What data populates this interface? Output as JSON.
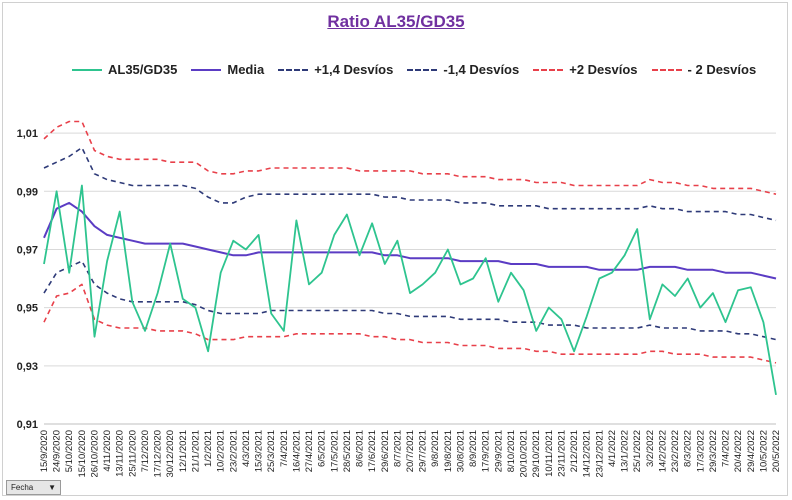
{
  "chart_data": {
    "type": "line",
    "title": "Ratio AL35/GD35",
    "xlabel": "",
    "ylabel": "",
    "ylim": [
      0.91,
      1.02
    ],
    "yticks": [
      "0,91",
      "0,93",
      "0,95",
      "0,97",
      "0,99",
      "1,01"
    ],
    "ytick_values": [
      0.91,
      0.93,
      0.95,
      0.97,
      0.99,
      1.01
    ],
    "grid": "horizontal",
    "legend_position": "top",
    "categories": [
      "15/9/2020",
      "24/9/2020",
      "5/10/2020",
      "15/10/2020",
      "26/10/2020",
      "4/11/2020",
      "13/11/2020",
      "25/11/2020",
      "7/12/2020",
      "17/12/2020",
      "30/12/2020",
      "12/1/2021",
      "21/1/2021",
      "1/2/2021",
      "10/2/2021",
      "23/2/2021",
      "4/3/2021",
      "15/3/2021",
      "25/3/2021",
      "7/4/2021",
      "16/4/2021",
      "27/4/2021",
      "6/5/2021",
      "17/5/2021",
      "28/5/2021",
      "8/6/2021",
      "17/6/2021",
      "29/6/2021",
      "8/7/2021",
      "20/7/2021",
      "29/7/2021",
      "9/8/2021",
      "19/8/2021",
      "30/8/2021",
      "8/9/2021",
      "17/9/2021",
      "29/9/2021",
      "8/10/2021",
      "20/10/2021",
      "29/10/2021",
      "10/11/2021",
      "23/11/2021",
      "2/12/2021",
      "14/12/2021",
      "23/12/2021",
      "4/1/2022",
      "13/1/2022",
      "25/1/2022",
      "3/2/2022",
      "14/2/2022",
      "23/2/2022",
      "8/3/2022",
      "17/3/2022",
      "29/3/2022",
      "7/4/2022",
      "20/4/2022",
      "29/4/2022",
      "10/5/2022",
      "20/5/2022"
    ],
    "series": [
      {
        "name": "AL35/GD35",
        "color": "#2ec48f",
        "dash": "solid",
        "values": [
          0.965,
          0.99,
          0.962,
          0.992,
          0.94,
          0.966,
          0.983,
          0.952,
          0.942,
          0.955,
          0.972,
          0.953,
          0.95,
          0.935,
          0.962,
          0.973,
          0.97,
          0.975,
          0.948,
          0.942,
          0.98,
          0.958,
          0.962,
          0.975,
          0.982,
          0.968,
          0.979,
          0.965,
          0.973,
          0.955,
          0.958,
          0.962,
          0.97,
          0.958,
          0.96,
          0.967,
          0.952,
          0.962,
          0.956,
          0.942,
          0.95,
          0.946,
          0.935,
          0.947,
          0.96,
          0.962,
          0.968,
          0.977,
          0.946,
          0.958,
          0.954,
          0.96,
          0.95,
          0.955,
          0.945,
          0.956,
          0.957,
          0.945,
          0.92
        ]
      },
      {
        "name": "Media",
        "color": "#5b3cc4",
        "dash": "solid",
        "values": [
          0.974,
          0.984,
          0.986,
          0.983,
          0.978,
          0.975,
          0.974,
          0.973,
          0.972,
          0.972,
          0.972,
          0.972,
          0.971,
          0.97,
          0.969,
          0.968,
          0.968,
          0.969,
          0.969,
          0.969,
          0.969,
          0.969,
          0.969,
          0.969,
          0.969,
          0.969,
          0.969,
          0.968,
          0.968,
          0.967,
          0.967,
          0.967,
          0.967,
          0.966,
          0.966,
          0.966,
          0.966,
          0.965,
          0.965,
          0.965,
          0.964,
          0.964,
          0.964,
          0.964,
          0.963,
          0.963,
          0.963,
          0.963,
          0.964,
          0.964,
          0.964,
          0.963,
          0.963,
          0.963,
          0.962,
          0.962,
          0.962,
          0.961,
          0.96
        ]
      },
      {
        "name": "+1,4 Desvíos",
        "color": "#2e3a78",
        "dash": "dashed",
        "values": [
          0.998,
          1.0,
          1.002,
          1.005,
          0.996,
          0.994,
          0.993,
          0.992,
          0.992,
          0.992,
          0.992,
          0.992,
          0.991,
          0.988,
          0.986,
          0.986,
          0.988,
          0.989,
          0.989,
          0.989,
          0.989,
          0.989,
          0.989,
          0.989,
          0.989,
          0.989,
          0.989,
          0.988,
          0.988,
          0.987,
          0.987,
          0.987,
          0.987,
          0.986,
          0.986,
          0.986,
          0.985,
          0.985,
          0.985,
          0.985,
          0.984,
          0.984,
          0.984,
          0.984,
          0.984,
          0.984,
          0.984,
          0.984,
          0.985,
          0.984,
          0.984,
          0.983,
          0.983,
          0.983,
          0.983,
          0.982,
          0.982,
          0.981,
          0.98
        ]
      },
      {
        "name": "-1,4 Desvíos",
        "color": "#2e3a78",
        "dash": "dashed",
        "values": [
          0.955,
          0.962,
          0.964,
          0.966,
          0.958,
          0.955,
          0.953,
          0.952,
          0.952,
          0.952,
          0.952,
          0.952,
          0.951,
          0.949,
          0.948,
          0.948,
          0.948,
          0.948,
          0.949,
          0.949,
          0.949,
          0.949,
          0.949,
          0.949,
          0.949,
          0.949,
          0.949,
          0.948,
          0.948,
          0.947,
          0.947,
          0.947,
          0.947,
          0.946,
          0.946,
          0.946,
          0.946,
          0.945,
          0.945,
          0.945,
          0.944,
          0.944,
          0.944,
          0.943,
          0.943,
          0.943,
          0.943,
          0.943,
          0.944,
          0.943,
          0.943,
          0.943,
          0.942,
          0.942,
          0.942,
          0.941,
          0.941,
          0.94,
          0.939
        ]
      },
      {
        "name": "+2 Desvíos",
        "color": "#e8404a",
        "dash": "dashed",
        "values": [
          1.008,
          1.012,
          1.014,
          1.014,
          1.004,
          1.002,
          1.001,
          1.001,
          1.001,
          1.001,
          1.0,
          1.0,
          1.0,
          0.997,
          0.996,
          0.996,
          0.997,
          0.997,
          0.998,
          0.998,
          0.998,
          0.998,
          0.998,
          0.998,
          0.998,
          0.997,
          0.997,
          0.997,
          0.997,
          0.997,
          0.996,
          0.996,
          0.996,
          0.995,
          0.995,
          0.995,
          0.994,
          0.994,
          0.994,
          0.993,
          0.993,
          0.993,
          0.992,
          0.992,
          0.992,
          0.992,
          0.992,
          0.992,
          0.994,
          0.993,
          0.993,
          0.992,
          0.992,
          0.991,
          0.991,
          0.991,
          0.991,
          0.99,
          0.989
        ]
      },
      {
        "name": "- 2 Desvíos",
        "color": "#e8404a",
        "dash": "dashed",
        "values": [
          0.945,
          0.954,
          0.955,
          0.958,
          0.946,
          0.944,
          0.943,
          0.943,
          0.943,
          0.942,
          0.942,
          0.942,
          0.941,
          0.939,
          0.939,
          0.939,
          0.94,
          0.94,
          0.94,
          0.94,
          0.941,
          0.941,
          0.941,
          0.941,
          0.941,
          0.941,
          0.94,
          0.94,
          0.939,
          0.939,
          0.938,
          0.938,
          0.938,
          0.937,
          0.937,
          0.937,
          0.936,
          0.936,
          0.936,
          0.935,
          0.935,
          0.934,
          0.934,
          0.934,
          0.934,
          0.934,
          0.934,
          0.934,
          0.935,
          0.935,
          0.934,
          0.934,
          0.934,
          0.933,
          0.933,
          0.933,
          0.933,
          0.932,
          0.931
        ]
      }
    ]
  },
  "ui": {
    "field_button_label": "Fecha",
    "field_button_icon": "dropdown-filter-icon"
  }
}
